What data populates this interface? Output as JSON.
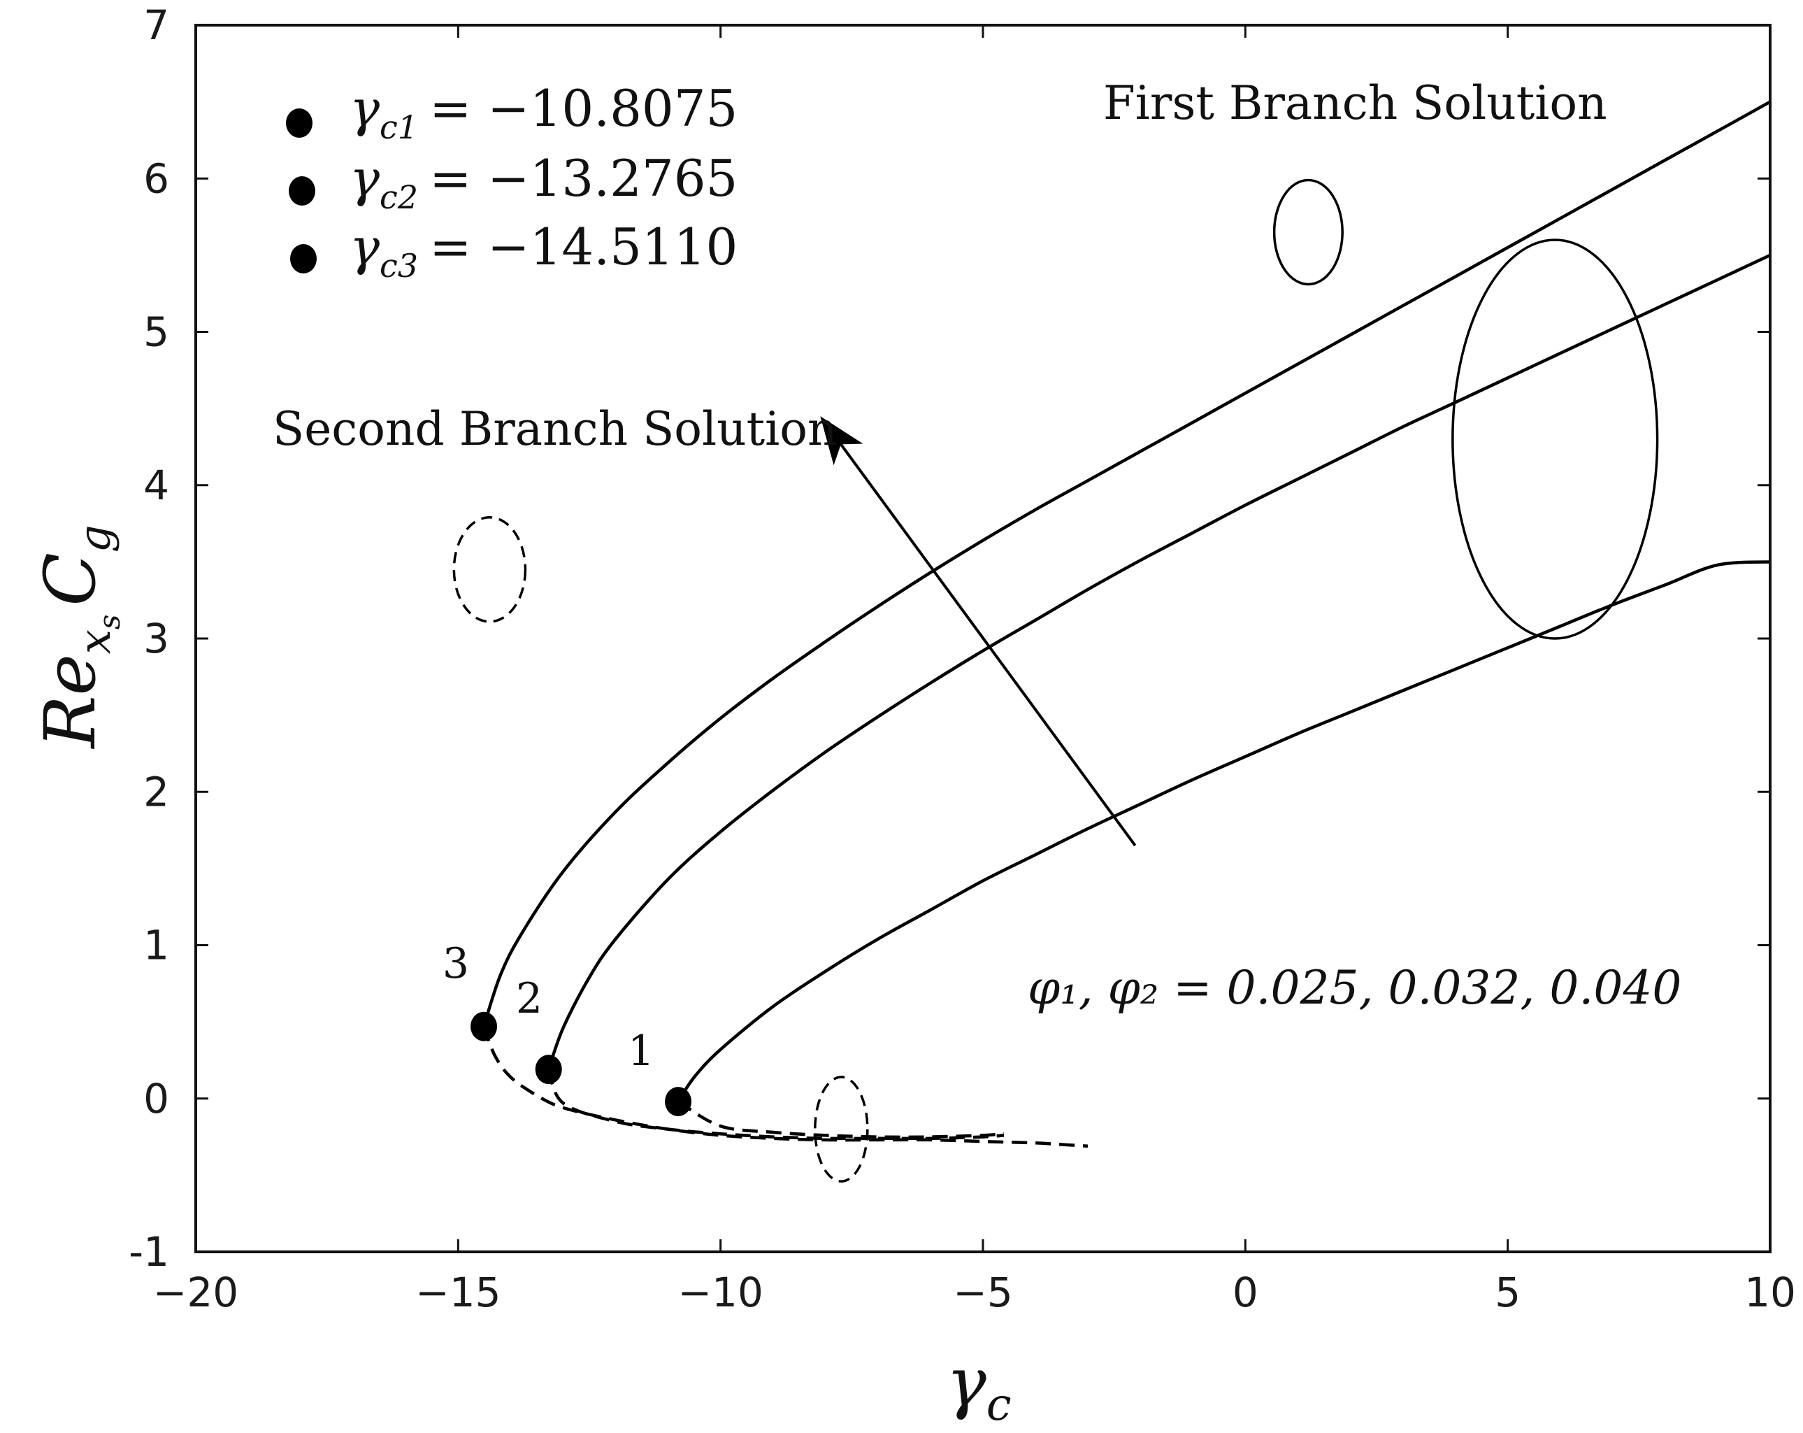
{
  "chart_data": {
    "type": "line",
    "xlabel": "γ",
    "xlabel_sub": "c",
    "ylabel": "Re",
    "ylabel_sub": "x",
    "ylabel_subsub": "s",
    "ylabel_tail": "C",
    "ylabel_tail_sub": "g",
    "xlim": [
      -20,
      10
    ],
    "ylim": [
      -1,
      7
    ],
    "x_ticks": [
      -20,
      -15,
      -10,
      -5,
      0,
      5,
      10
    ],
    "y_ticks": [
      -1,
      0,
      1,
      2,
      3,
      4,
      5,
      6,
      7
    ],
    "x_tick_labels": [
      "−20",
      "−15",
      "−10",
      "−5",
      "0",
      "5",
      "10"
    ],
    "y_tick_labels": [
      "-1",
      "0",
      "1",
      "2",
      "3",
      "4",
      "5",
      "6",
      "7"
    ],
    "grid": false,
    "series": [
      {
        "label": "1",
        "critical_point": [
          -10.8075,
          -0.02
        ],
        "first_branch": [
          [
            -10.8075,
            -0.02
          ],
          [
            -10.5,
            0.14
          ],
          [
            -10,
            0.32
          ],
          [
            -9,
            0.6
          ],
          [
            -8,
            0.83
          ],
          [
            -7,
            1.04
          ],
          [
            -6,
            1.23
          ],
          [
            -5,
            1.42
          ],
          [
            -4,
            1.59
          ],
          [
            -3,
            1.76
          ],
          [
            -2,
            1.92
          ],
          [
            -1,
            2.08
          ],
          [
            0,
            2.23
          ],
          [
            1,
            2.38
          ],
          [
            2,
            2.52
          ],
          [
            3,
            2.66
          ],
          [
            4,
            2.8
          ],
          [
            5,
            2.94
          ],
          [
            6,
            3.08
          ],
          [
            7,
            3.22
          ],
          [
            8,
            3.35
          ],
          [
            9,
            3.48
          ],
          [
            10,
            3.5
          ]
        ],
        "second_branch": [
          [
            -10.8075,
            -0.02
          ],
          [
            -10,
            -0.18
          ],
          [
            -9,
            -0.22
          ],
          [
            -8,
            -0.24
          ],
          [
            -7,
            -0.25
          ],
          [
            -6,
            -0.25
          ],
          [
            -5,
            -0.24
          ],
          [
            -4.6,
            -0.23
          ]
        ]
      },
      {
        "label": "2",
        "critical_point": [
          -13.2765,
          0.19
        ],
        "first_branch": [
          [
            -13.2765,
            0.19
          ],
          [
            -13,
            0.46
          ],
          [
            -12.5,
            0.79
          ],
          [
            -12,
            1.04
          ],
          [
            -11,
            1.43
          ],
          [
            -10,
            1.74
          ],
          [
            -9,
            2.01
          ],
          [
            -8,
            2.26
          ],
          [
            -7,
            2.49
          ],
          [
            -6,
            2.71
          ],
          [
            -5,
            2.92
          ],
          [
            -4,
            3.12
          ],
          [
            -3,
            3.32
          ],
          [
            -2,
            3.51
          ],
          [
            -1,
            3.69
          ],
          [
            0,
            3.87
          ],
          [
            1,
            4.04
          ],
          [
            2,
            4.21
          ],
          [
            3,
            4.38
          ],
          [
            4,
            4.54
          ],
          [
            5,
            4.7
          ],
          [
            6,
            4.86
          ],
          [
            7,
            5.02
          ],
          [
            8,
            5.18
          ],
          [
            9,
            5.34
          ],
          [
            10,
            5.5
          ]
        ],
        "second_branch": [
          [
            -13.2765,
            0.19
          ],
          [
            -13,
            -0.03
          ],
          [
            -12,
            -0.15
          ],
          [
            -11,
            -0.2
          ],
          [
            -10,
            -0.23
          ],
          [
            -9,
            -0.25
          ],
          [
            -8,
            -0.26
          ],
          [
            -7,
            -0.26
          ],
          [
            -6,
            -0.26
          ],
          [
            -5,
            -0.25
          ],
          [
            -4.6,
            -0.24
          ]
        ]
      },
      {
        "label": "3",
        "critical_point": [
          -14.511,
          0.47
        ],
        "first_branch": [
          [
            -14.511,
            0.47
          ],
          [
            -14.2,
            0.8
          ],
          [
            -13.8,
            1.07
          ],
          [
            -13,
            1.48
          ],
          [
            -12,
            1.87
          ],
          [
            -11,
            2.19
          ],
          [
            -10,
            2.48
          ],
          [
            -9,
            2.74
          ],
          [
            -8,
            2.98
          ],
          [
            -7,
            3.21
          ],
          [
            -6,
            3.43
          ],
          [
            -5,
            3.64
          ],
          [
            -4,
            3.84
          ],
          [
            -3,
            4.03
          ],
          [
            -2,
            4.22
          ],
          [
            -1,
            4.41
          ],
          [
            0,
            4.6
          ],
          [
            1,
            4.79
          ],
          [
            2,
            4.98
          ],
          [
            3,
            5.17
          ],
          [
            4,
            5.36
          ],
          [
            5,
            5.55
          ],
          [
            6,
            5.74
          ],
          [
            7,
            5.93
          ],
          [
            8,
            6.12
          ],
          [
            9,
            6.31
          ],
          [
            10,
            6.5
          ]
        ],
        "second_branch": [
          [
            -14.511,
            0.47
          ],
          [
            -14.3,
            0.28
          ],
          [
            -14,
            0.14
          ],
          [
            -13.5,
            0.02
          ],
          [
            -13,
            -0.06
          ],
          [
            -12,
            -0.14
          ],
          [
            -11,
            -0.2
          ],
          [
            -10,
            -0.24
          ],
          [
            -9,
            -0.26
          ],
          [
            -8,
            -0.27
          ],
          [
            -7,
            -0.27
          ],
          [
            -6,
            -0.27
          ],
          [
            -5,
            -0.28
          ],
          [
            -4,
            -0.29
          ],
          [
            -3.5,
            -0.3
          ],
          [
            -3,
            -0.31
          ]
        ]
      }
    ],
    "legend": [
      {
        "symbol": "γ",
        "sub": "c1",
        "value": "= −10.8075"
      },
      {
        "symbol": "γ",
        "sub": "c2",
        "value": "= −13.2765"
      },
      {
        "symbol": "γ",
        "sub": "c3",
        "value": "= −14.5110"
      }
    ],
    "annotations": {
      "first_branch": "First Branch Solution",
      "second_branch": "Second Branch Solution",
      "param_text": "φ₁, φ₂ = 0.025, 0.032, 0.040"
    },
    "arrow": {
      "from": [
        -2.1,
        1.65
      ],
      "to": [
        -8.1,
        4.45
      ]
    },
    "first_branch_ellipse": {
      "center": [
        5.9,
        4.3
      ],
      "rx": 1.95,
      "ry": 1.3
    },
    "second_branch_ellipse": {
      "center": [
        -7.7,
        -0.2
      ],
      "rx": 0.5,
      "ry": 0.34
    },
    "first_branch_key_ellipse": {
      "center": [
        1.2,
        5.65
      ],
      "rx": 0.65,
      "ry": 0.34
    },
    "second_branch_key_ellipse": {
      "center": [
        -14.4,
        3.45
      ],
      "rx": 0.68,
      "ry": 0.34
    }
  }
}
